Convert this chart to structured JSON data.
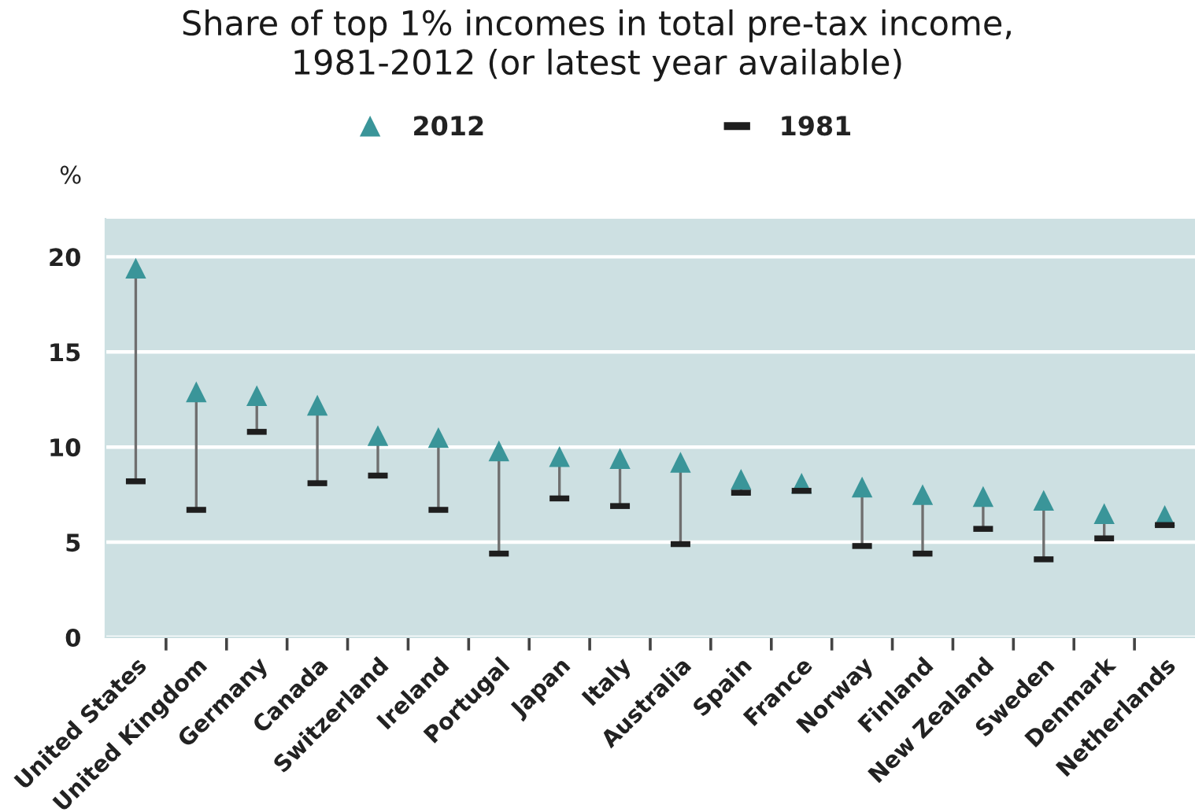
{
  "chart_data": {
    "type": "scatter",
    "title": "Share of top 1% incomes in total pre-tax income,\n1981-2012 (or latest year available)",
    "ylabel": "%",
    "categories": [
      "United States",
      "United Kingdom",
      "Germany",
      "Canada",
      "Switzerland",
      "Ireland",
      "Portugal",
      "Japan",
      "Italy",
      "Australia",
      "Spain",
      "France",
      "Norway",
      "Finland",
      "New Zealand",
      "Sweden",
      "Denmark",
      "Netherlands"
    ],
    "series": [
      {
        "name": "2012",
        "color": "#3a9599",
        "marker": "triangle",
        "values": [
          19.4,
          12.9,
          12.7,
          12.2,
          10.6,
          10.5,
          9.8,
          9.5,
          9.4,
          9.2,
          8.3,
          8.1,
          7.9,
          7.5,
          7.4,
          7.2,
          6.5,
          6.4
        ]
      },
      {
        "name": "1981",
        "color": "#1e1e1e",
        "marker": "square",
        "values": [
          8.2,
          6.7,
          10.8,
          8.1,
          8.5,
          6.7,
          4.4,
          7.3,
          6.9,
          4.9,
          7.6,
          7.7,
          4.8,
          4.4,
          5.7,
          4.1,
          5.2,
          5.9
        ]
      }
    ],
    "ylim": [
      0,
      22
    ],
    "yticks": [
      0,
      5,
      10,
      15,
      20
    ],
    "grid": "y",
    "legend": "top"
  }
}
